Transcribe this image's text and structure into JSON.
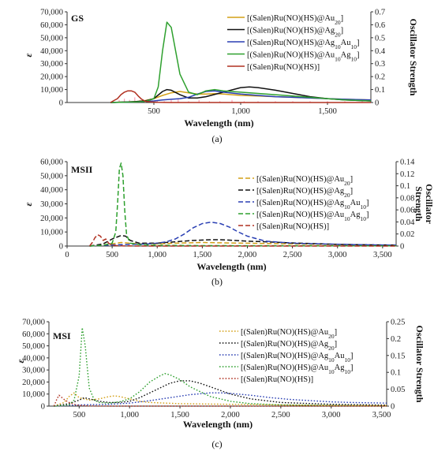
{
  "chart_data": [
    {
      "type": "line",
      "panel_label": "GS",
      "caption": "(a)",
      "xlabel": "Wavelength (nm)",
      "ylabel": "ε",
      "y2label": "Oscillator Strength",
      "xlim": [
        0,
        1750
      ],
      "ylim": [
        0,
        70000
      ],
      "y2lim": [
        0,
        0.7
      ],
      "xticks": [
        500,
        1000,
        1500
      ],
      "xtick_labels": [
        "500",
        "1,000",
        "1,500"
      ],
      "yticks": [
        0,
        10000,
        20000,
        30000,
        40000,
        50000,
        60000,
        70000
      ],
      "ytick_labels": [
        "0",
        "10,000",
        "20,000",
        "30,000",
        "40,000",
        "50,000",
        "60,000",
        "70,000"
      ],
      "y2ticks": [
        0,
        0.1,
        0.2,
        0.3,
        0.4,
        0.5,
        0.6,
        0.7
      ],
      "y2tick_labels": [
        "0",
        "0.1",
        "0.2",
        "0.3",
        "0.4",
        "0.5",
        "0.6",
        "0.7"
      ],
      "legend_position": "top-right",
      "series": [
        {
          "name": "[(Salen)Ru(NO)(HS)@Au20]",
          "color": "#d4a017",
          "dash": "solid",
          "x": [
            250,
            350,
            400,
            450,
            500,
            550,
            600,
            650,
            700,
            750,
            800,
            850,
            900,
            1000,
            1100,
            1200,
            1300,
            1400,
            1500,
            1600,
            1750
          ],
          "y": [
            0,
            400,
            800,
            1500,
            3000,
            5500,
            7500,
            8500,
            7500,
            6500,
            6500,
            6800,
            6500,
            5500,
            5000,
            4500,
            4000,
            3500,
            3000,
            2500,
            2000
          ]
        },
        {
          "name": "[(Salen)Ru(NO)(HS)@Ag20]",
          "color": "#111111",
          "dash": "solid",
          "x": [
            250,
            350,
            400,
            450,
            500,
            550,
            575,
            600,
            650,
            700,
            750,
            800,
            900,
            1000,
            1050,
            1100,
            1200,
            1300,
            1400,
            1500,
            1600,
            1750
          ],
          "y": [
            0,
            500,
            800,
            1200,
            3000,
            8500,
            10000,
            9500,
            6000,
            3500,
            3500,
            4500,
            8000,
            11500,
            12000,
            11500,
            9500,
            7000,
            4500,
            3000,
            2000,
            1200
          ]
        },
        {
          "name": "[(Salen)Ru(NO)(HS)@Ag10Au10]",
          "color": "#2a3fb3",
          "dash": "solid",
          "x": [
            250,
            350,
            400,
            450,
            500,
            550,
            600,
            650,
            700,
            750,
            800,
            850,
            900,
            1000,
            1100,
            1200,
            1300,
            1400,
            1500,
            1600,
            1750
          ],
          "y": [
            0,
            300,
            500,
            800,
            1200,
            2000,
            2500,
            3000,
            4000,
            6500,
            8500,
            9000,
            8000,
            6500,
            5500,
            4500,
            4000,
            3500,
            3000,
            2500,
            2000
          ]
        },
        {
          "name": "[(Salen)Ru(NO)(HS)@Au10Ag10]",
          "color": "#2ea02e",
          "dash": "solid",
          "x": [
            250,
            350,
            400,
            450,
            500,
            525,
            550,
            575,
            600,
            625,
            650,
            700,
            750,
            800,
            850,
            900,
            1000,
            1100,
            1200,
            1300,
            1400,
            1500,
            1600,
            1750
          ],
          "y": [
            0,
            300,
            500,
            800,
            3000,
            12000,
            40000,
            62000,
            58000,
            40000,
            22000,
            8000,
            6000,
            9000,
            10000,
            9000,
            8000,
            7000,
            6000,
            5000,
            4000,
            3000,
            2000,
            1200
          ]
        },
        {
          "name": "[(Salen)Ru(NO)(HS)]",
          "color": "#b03020",
          "dash": "solid",
          "x": [
            250,
            270,
            290,
            310,
            330,
            350,
            370,
            390,
            410,
            430,
            450,
            480,
            520,
            600,
            800,
            1000,
            1750
          ],
          "y": [
            0,
            1500,
            3000,
            6000,
            8000,
            9000,
            9000,
            8000,
            5000,
            2500,
            1000,
            400,
            200,
            0,
            0,
            0,
            0
          ]
        }
      ],
      "oscillator_sticks": [
        {
          "series": "[(Salen)Ru(NO)(HS)@Au10Ag10]",
          "color": "#ff9fb6",
          "x": [
            300,
            330,
            360,
            390,
            420,
            450,
            480,
            520,
            560,
            600,
            640,
            700,
            760,
            820,
            880,
            950,
            1020,
            1100,
            1200,
            1300,
            1400,
            1500,
            1600,
            1700
          ],
          "y": [
            0.02,
            0.03,
            0.02,
            0.04,
            0.02,
            0.01,
            0.03,
            0.02,
            0.01,
            0.02,
            0.03,
            0.01,
            0.02,
            0.01,
            0.01,
            0.02,
            0.01,
            0.01,
            0.01,
            0.01,
            0.01,
            0.01,
            0.01,
            0.01
          ]
        }
      ]
    },
    {
      "type": "line",
      "panel_label": "MSII",
      "caption": "(b)",
      "xlabel": "Wavelength (nm)",
      "ylabel": "ε",
      "y2label": "Oscillator Strength",
      "xlim": [
        0,
        3650
      ],
      "ylim": [
        0,
        60000
      ],
      "y2lim": [
        0,
        0.14
      ],
      "xticks": [
        0,
        500,
        1000,
        1500,
        2000,
        2500,
        3000,
        3500
      ],
      "xtick_labels": [
        "0",
        "500",
        "1,000",
        "1,500",
        "2,000",
        "2,500",
        "3,000",
        "3,500"
      ],
      "yticks": [
        0,
        10000,
        20000,
        30000,
        40000,
        50000,
        60000
      ],
      "ytick_labels": [
        "0",
        "10,000",
        "20,000",
        "30,000",
        "40,000",
        "50,000",
        "60,000"
      ],
      "y2ticks": [
        0,
        0.02,
        0.04,
        0.06,
        0.08,
        0.1,
        0.12,
        0.14
      ],
      "y2tick_labels": [
        "0",
        "0.02",
        "0.04",
        "0.06",
        "0.08",
        "0.1",
        "0.12",
        "0.14"
      ],
      "legend_position": "right",
      "series": [
        {
          "name": "[(Salen)Ru(NO)(HS)@Au20]",
          "color": "#d4a017",
          "dash": "dashed",
          "x": [
            250,
            400,
            500,
            600,
            700,
            800,
            1000,
            1200,
            1500,
            1800,
            2000,
            2500,
            3000,
            3650
          ],
          "y": [
            0,
            800,
            1500,
            2500,
            2000,
            1500,
            1500,
            2000,
            2500,
            2200,
            2000,
            1500,
            1000,
            500
          ]
        },
        {
          "name": "[(Salen)Ru(NO)(HS)@Ag20]",
          "color": "#111111",
          "dash": "dashed",
          "x": [
            250,
            400,
            500,
            600,
            650,
            700,
            800,
            1000,
            1200,
            1400,
            1600,
            1700,
            1800,
            2000,
            2200,
            2500,
            3000,
            3650
          ],
          "y": [
            0,
            1500,
            5000,
            7500,
            7000,
            4000,
            2000,
            2000,
            3000,
            4000,
            4500,
            4500,
            4200,
            3500,
            3000,
            2200,
            1200,
            600
          ]
        },
        {
          "name": "[(Salen)Ru(NO)(HS)@Ag10Au10]",
          "color": "#2a3fb3",
          "dash": "dashed",
          "x": [
            250,
            500,
            700,
            900,
            1000,
            1100,
            1200,
            1300,
            1400,
            1500,
            1600,
            1700,
            1800,
            1900,
            2000,
            2200,
            2500,
            2800,
            3200,
            3650
          ],
          "y": [
            0,
            800,
            1200,
            1500,
            2000,
            3000,
            5000,
            8500,
            13000,
            16000,
            17000,
            16000,
            13500,
            10000,
            7000,
            3500,
            2000,
            1500,
            1000,
            600
          ]
        },
        {
          "name": "[(Salen)Ru(NO)(HS)@Au10Ag10]",
          "color": "#2ea02e",
          "dash": "dashed",
          "x": [
            250,
            400,
            500,
            540,
            560,
            580,
            600,
            620,
            640,
            660,
            700,
            800,
            1000,
            1500,
            2000,
            3650
          ],
          "y": [
            0,
            500,
            2000,
            10000,
            30000,
            55000,
            59000,
            50000,
            25000,
            8000,
            2000,
            1000,
            500,
            300,
            200,
            100
          ]
        },
        {
          "name": "[(Salen)Ru(NO)(HS)]",
          "color": "#b03020",
          "dash": "dashed",
          "x": [
            250,
            280,
            310,
            340,
            370,
            400,
            430,
            460,
            500,
            600,
            800,
            3650
          ],
          "y": [
            0,
            2500,
            6000,
            8000,
            7000,
            4000,
            5000,
            2000,
            500,
            100,
            0,
            0
          ]
        }
      ]
    },
    {
      "type": "line",
      "panel_label": "MSI",
      "caption": "(c)",
      "xlabel": "Wavelength (nm)",
      "ylabel": "ε",
      "y2label": "Oscillator Strength",
      "xlim": [
        200,
        3550
      ],
      "ylim": [
        0,
        70000
      ],
      "y2lim": [
        0,
        0.25
      ],
      "xticks": [
        500,
        1000,
        1500,
        2000,
        2500,
        3000,
        3500
      ],
      "xtick_labels": [
        "500",
        "1,000",
        "1,500",
        "2,000",
        "2,500",
        "3,000",
        "3,500"
      ],
      "yticks": [
        0,
        10000,
        20000,
        30000,
        40000,
        50000,
        60000,
        70000
      ],
      "ytick_labels": [
        "0",
        "10,000",
        "20,000",
        "30,000",
        "40,000",
        "50,000",
        "60,000",
        "70,000"
      ],
      "y2ticks": [
        0,
        0.05,
        0.1,
        0.15,
        0.2,
        0.25
      ],
      "y2tick_labels": [
        "0",
        "0.05",
        "0.1",
        "0.15",
        "0.2",
        "0.25"
      ],
      "legend_position": "right",
      "series": [
        {
          "name": "[(Salen)Ru(NO)(HS)@Au20]",
          "color": "#d4a017",
          "dash": "dotted",
          "x": [
            250,
            350,
            400,
            450,
            500,
            600,
            700,
            800,
            850,
            900,
            1000,
            1100,
            1200,
            1500,
            2000,
            2500,
            3000,
            3550
          ],
          "y": [
            0,
            3000,
            8000,
            11000,
            7000,
            5000,
            6000,
            8000,
            8500,
            8000,
            6000,
            4000,
            3000,
            2000,
            1500,
            1000,
            600,
            300
          ]
        },
        {
          "name": "[(Salen)Ru(NO)(HS)@Ag20]",
          "color": "#111111",
          "dash": "dotted",
          "x": [
            250,
            400,
            500,
            550,
            600,
            700,
            800,
            900,
            1000,
            1100,
            1200,
            1300,
            1400,
            1500,
            1600,
            1700,
            1800,
            2000,
            2200,
            2500,
            3000,
            3550
          ],
          "y": [
            0,
            2000,
            5000,
            7000,
            6000,
            4000,
            3000,
            3000,
            4000,
            7000,
            11000,
            15000,
            19000,
            21000,
            21000,
            19000,
            16000,
            10000,
            6000,
            3000,
            1500,
            800
          ]
        },
        {
          "name": "[(Salen)Ru(NO)(HS)@Ag10Au10]",
          "color": "#2a3fb3",
          "dash": "dotted",
          "x": [
            250,
            500,
            800,
            1000,
            1200,
            1400,
            1600,
            1800,
            1900,
            2000,
            2200,
            2400,
            2600,
            2800,
            3000,
            3200,
            3550
          ],
          "y": [
            0,
            1000,
            1500,
            2500,
            4500,
            7000,
            9500,
            11000,
            11000,
            10500,
            9000,
            7000,
            5500,
            4500,
            3500,
            3000,
            2500
          ]
        },
        {
          "name": "[(Salen)Ru(NO)(HS)@Au10Ag10]",
          "color": "#2ea02e",
          "dash": "dotted",
          "x": [
            250,
            400,
            450,
            500,
            530,
            560,
            600,
            650,
            700,
            800,
            900,
            1000,
            1100,
            1200,
            1300,
            1350,
            1400,
            1500,
            1600,
            1800,
            2000,
            2200,
            2500,
            3000,
            3550
          ],
          "y": [
            0,
            1000,
            5000,
            25000,
            65000,
            50000,
            15000,
            5000,
            3000,
            2500,
            3500,
            6000,
            12000,
            20000,
            25000,
            27000,
            26000,
            22000,
            16000,
            8000,
            4000,
            2000,
            1000,
            500,
            200
          ]
        },
        {
          "name": "[(Salen)Ru(NO)(HS)]",
          "color": "#b03020",
          "dash": "dotted",
          "x": [
            250,
            280,
            300,
            330,
            360,
            400,
            450,
            500,
            600,
            800,
            3550
          ],
          "y": [
            0,
            6000,
            9000,
            7000,
            5000,
            3000,
            1500,
            500,
            100,
            0,
            0
          ]
        }
      ]
    }
  ]
}
